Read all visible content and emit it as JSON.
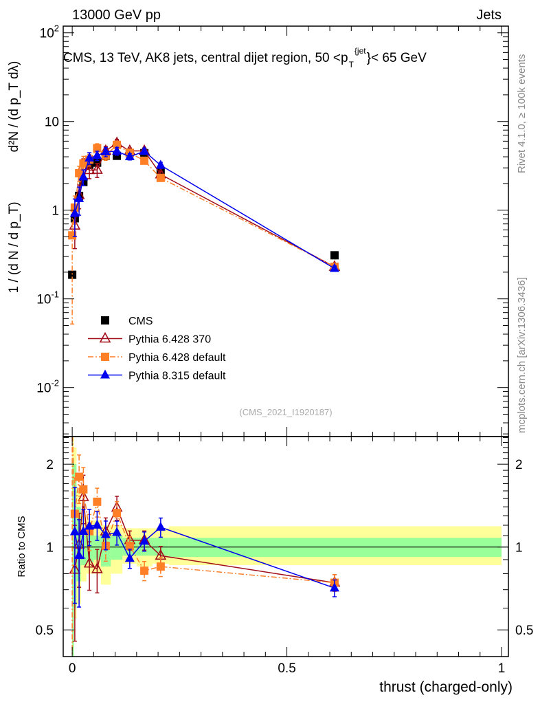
{
  "header": {
    "left": "13000 GeV pp",
    "right": "Jets"
  },
  "side_labels": {
    "rivet": "Rivet 4.1.0, ≥ 100k events",
    "mcplots": "mcplots.cern.ch [arXiv:1306.3436]"
  },
  "watermark": "(CMS_2021_I1920187)",
  "colors": {
    "cms": "#000000",
    "p6_370": "#a00d19",
    "p6_default": "#ff7f27",
    "p8": "#0000ee",
    "band_stat": "#99ff99",
    "band_total": "#ffff99"
  },
  "chart_data": [
    {
      "type": "scatter",
      "title": "CMS, 13 TeV, AK8 jets, central dijet region, 50 <p_T^{jet}< 65 GeV",
      "title_main": "CMS, 13 TeV, AK8 jets, central dijet region, 50 <p",
      "title_sub": "T",
      "title_sup": "{jet",
      "title_end": "}< 65 GeV",
      "ylabel_left": "1 / (d N / d p_T)",
      "ylabel_right": "d²N / (d p_T dλ)",
      "yscale": "log",
      "ylim": [
        0.0028,
        119
      ],
      "xlim": [
        -0.021,
        1.016
      ],
      "yticks": [
        {
          "v": 0.01,
          "b": "10",
          "e": "-2"
        },
        {
          "v": 0.1,
          "b": "10",
          "e": "-1"
        },
        {
          "v": 1,
          "b": "1",
          "e": ""
        },
        {
          "v": 10,
          "b": "10",
          "e": ""
        },
        {
          "v": 100,
          "b": "10",
          "e": "2"
        }
      ],
      "legend": [
        {
          "key": "cms",
          "label": "CMS"
        },
        {
          "key": "p6_370",
          "label": "Pythia 6.428 370"
        },
        {
          "key": "p6_default",
          "label": "Pythia 6.428 default"
        },
        {
          "key": "p8",
          "label": "Pythia 8.315 default"
        }
      ],
      "legend_position": "center-left",
      "x": [
        0.0,
        0.006,
        0.016,
        0.026,
        0.04,
        0.058,
        0.078,
        0.104,
        0.134,
        0.168,
        0.206,
        0.611
      ],
      "bin_edges": [
        0,
        0.004,
        0.01,
        0.02,
        0.033,
        0.05,
        0.067,
        0.09,
        0.117,
        0.15,
        0.187,
        0.225,
        1.0
      ],
      "series": [
        {
          "key": "cms",
          "name": "CMS",
          "values": [
            0.187,
            0.81,
            1.45,
            2.08,
            3.25,
            3.43,
            4.1,
            4.1,
            4.4,
            4.4,
            2.72,
            0.31
          ],
          "rel_err": [
            0.05,
            0.05,
            0.05,
            0.05,
            0.04,
            0.04,
            0.04,
            0.04,
            0.04,
            0.04,
            0.04,
            0.04
          ]
        },
        {
          "key": "p6_370",
          "name": "Pythia 6.428 370",
          "values": [
            null,
            0.67,
            1.48,
            3.16,
            2.83,
            2.85,
            4.67,
            5.7,
            4.66,
            4.66,
            2.53,
            0.23
          ],
          "rel_err": [
            0,
            0.45,
            0.3,
            0.2,
            0.2,
            0.18,
            0.12,
            0.1,
            0.08,
            0.08,
            0.08,
            0.07
          ]
        },
        {
          "key": "p6_default",
          "name": "Pythia 6.428 default",
          "values": [
            0.52,
            1.07,
            2.61,
            3.37,
            3.71,
            5.01,
            4.14,
            5.45,
            4.44,
            3.61,
            2.31,
            0.23
          ],
          "rel_err": [
            0.9,
            0.35,
            0.2,
            0.2,
            0.15,
            0.12,
            0.12,
            0.1,
            0.08,
            0.08,
            0.08,
            0.07
          ]
        },
        {
          "key": "p8",
          "name": "Pythia 8.315 default",
          "values": [
            null,
            0.92,
            1.35,
            2.37,
            3.87,
            4.12,
            4.55,
            4.63,
            4.0,
            4.62,
            3.21,
            0.22
          ],
          "rel_err": [
            0,
            0.45,
            0.35,
            0.2,
            0.15,
            0.12,
            0.12,
            0.1,
            0.08,
            0.08,
            0.08,
            0.07
          ]
        }
      ]
    },
    {
      "type": "scatter",
      "ylabel": "Ratio to CMS",
      "xlabel": "thrust (charged-only)",
      "yscale": "log",
      "ylim": [
        0.4,
        2.52
      ],
      "yticks": [
        {
          "v": 0.5,
          "label": "0.5"
        },
        {
          "v": 1,
          "label": "1"
        },
        {
          "v": 2,
          "label": "2"
        }
      ],
      "xticks": [
        {
          "v": 0,
          "label": "0"
        },
        {
          "v": 0.5,
          "label": "0.5"
        },
        {
          "v": 1,
          "label": "1"
        }
      ],
      "band_total": [
        [
          0.4,
          2.5
        ],
        [
          0.55,
          2.3
        ],
        [
          0.62,
          1.6
        ],
        [
          0.75,
          1.3
        ],
        [
          0.8,
          1.25
        ],
        [
          0.8,
          1.25
        ],
        [
          0.73,
          1.2
        ],
        [
          0.8,
          1.2
        ],
        [
          0.87,
          1.17
        ],
        [
          0.85,
          1.17
        ],
        [
          0.87,
          1.17
        ],
        [
          0.86,
          1.19
        ]
      ],
      "band_stat": [
        [
          0.4,
          2.1
        ],
        [
          0.6,
          2.0
        ],
        [
          0.75,
          1.4
        ],
        [
          0.86,
          1.15
        ],
        [
          0.88,
          1.12
        ],
        [
          0.9,
          1.1
        ],
        [
          0.85,
          1.12
        ],
        [
          0.9,
          1.1
        ],
        [
          0.93,
          1.08
        ],
        [
          0.93,
          1.08
        ],
        [
          0.93,
          1.08
        ],
        [
          0.92,
          1.08
        ]
      ]
    }
  ]
}
